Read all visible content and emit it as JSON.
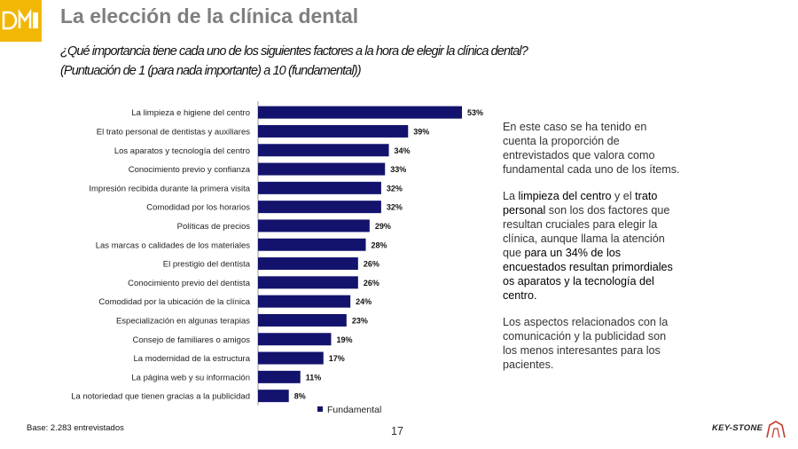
{
  "header": {
    "title": "La elección de la clínica dental",
    "question": "¿Qué importancia tiene cada uno de los siguientes factores a la hora de elegir la clínica dental?",
    "scale_note": "(Puntuación de 1 (para nada importante) a 10 (fundamental))",
    "logo_text": "DM"
  },
  "colors": {
    "bar": "#13136e",
    "logo_bg": "#f2b705",
    "title": "#7f7f7f"
  },
  "chart_data": {
    "type": "bar",
    "orientation": "horizontal",
    "categories": [
      "La limpieza e higiene del centro",
      "El trato personal de dentistas y auxiliares",
      "Los aparatos y tecnología del centro",
      "Conocimiento previo y confianza",
      "Impresión recibida durante la primera visita",
      "Comodidad por los horarios",
      "Políticas de precios",
      "Las marcas o calidades de los materiales",
      "El prestigio del dentista",
      "Conocimiento previo del dentista",
      "Comodidad por la ubicación de la clínica",
      "Especialización en algunas terapias",
      "Consejo de familiares o amigos",
      "La modernidad de la estructura",
      "La página web y su información",
      "La notoriedad que tienen gracias a la publicidad"
    ],
    "series": [
      {
        "name": "Fundamental",
        "values": [
          53,
          39,
          34,
          33,
          32,
          32,
          29,
          28,
          26,
          26,
          24,
          23,
          19,
          17,
          11,
          8
        ]
      }
    ],
    "value_labels": [
      "53%",
      "39%",
      "34%",
      "33%",
      "32%",
      "32%",
      "29%",
      "28%",
      "26%",
      "26%",
      "24%",
      "23%",
      "19%",
      "17%",
      "11%",
      "8%"
    ],
    "xlim": [
      0,
      100
    ],
    "legend_position": "bottom",
    "grid": false
  },
  "side_text": {
    "p1": "En este caso se ha tenido en cuenta la proporción de entrevistados que valora como fundamental cada uno de los ítems.",
    "p2_a": "La ",
    "p2_b": "limpieza del centro",
    "p2_c": " y el ",
    "p2_d": "trato personal",
    "p2_e": " son los dos factores que resultan cruciales para elegir la clínica, aunque llama la atención que ",
    "p2_f": "para un 34% de los encuestados resultan primordiales os aparatos y la tecnología del centro.",
    "p3": "Los aspectos relacionados con la comunicación y la publicidad son los menos interesantes para los pacientes."
  },
  "footer": {
    "base": "Base: 2.283 entrevistados",
    "page": "17",
    "brand": "KEY-STONE"
  }
}
